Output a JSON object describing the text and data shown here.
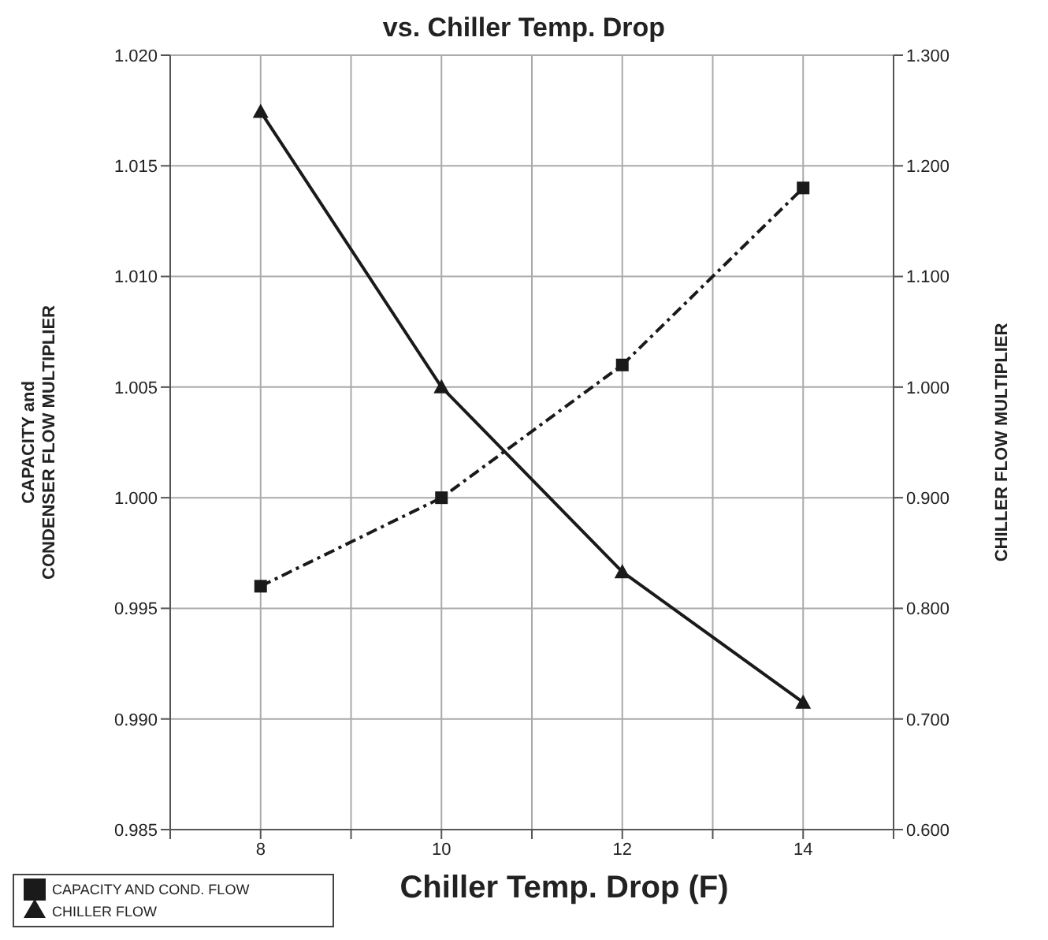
{
  "chart_data": {
    "type": "line",
    "title": "vs. Chiller Temp. Drop",
    "xlabel": "Chiller Temp. Drop (F)",
    "ylabel": "CAPACITY and\nCONDENSER FLOW MULTIPLIER",
    "y2label": "CHILLER FLOW MULTIPLIER",
    "x": [
      8,
      10,
      12,
      14
    ],
    "series": [
      {
        "name": "CAPACITY AND COND. FLOW",
        "color": "#1a1a1a",
        "values": [
          0.996,
          1.0,
          1.006,
          1.014
        ],
        "marker": "square",
        "line_style": "dashed"
      },
      {
        "name": "CHILLER FLOW",
        "color": "#1a1a1a",
        "values": [
          1.249,
          1.0,
          0.833,
          0.715
        ],
        "marker": "triangle",
        "line_style": "solid",
        "axis": "y2"
      }
    ],
    "xlim": [
      7,
      15
    ],
    "xticks": [
      {
        "value": 7,
        "label": null
      },
      8,
      {
        "value": 9,
        "label": null
      },
      10,
      {
        "value": 11,
        "label": null
      },
      12,
      {
        "value": 13,
        "label": null
      },
      14,
      {
        "value": 15,
        "label": null
      }
    ],
    "ylim": [
      0.985,
      1.02
    ],
    "yticks": [
      {
        "value": 0.985,
        "label": "0.985"
      },
      {
        "value": 0.99,
        "label": "0.990"
      },
      {
        "value": 0.995,
        "label": "0.995"
      },
      {
        "value": 1.0,
        "label": "1.000"
      },
      {
        "value": 1.005,
        "label": "1.005"
      },
      {
        "value": 1.01,
        "label": "1.010"
      },
      {
        "value": 1.015,
        "label": "1.015"
      },
      {
        "value": 1.02,
        "label": "1.020"
      }
    ],
    "y2lim": [
      0.6,
      1.3
    ],
    "y2ticks": [
      {
        "value": 0.6,
        "label": "0.600"
      },
      {
        "value": 0.7,
        "label": "0.700"
      },
      {
        "value": 0.8,
        "label": "0.800"
      },
      {
        "value": 0.9,
        "label": "0.900"
      },
      {
        "value": 1.0,
        "label": "1.000"
      },
      {
        "value": 1.1,
        "label": "1.100"
      },
      {
        "value": 1.2,
        "label": "1.200"
      },
      {
        "value": 1.3,
        "label": "1.300"
      }
    ],
    "grid": true,
    "legend": "bottom left"
  }
}
